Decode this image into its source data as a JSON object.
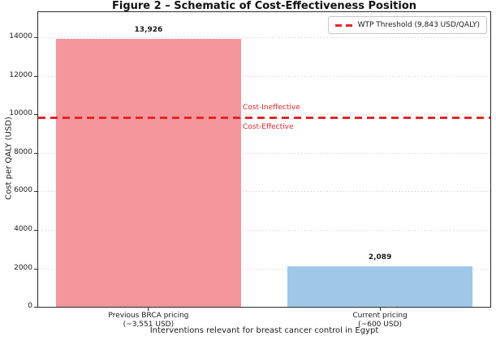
{
  "chart_data": {
    "type": "bar",
    "title": "Figure 2 – Schematic of Cost-Effectiveness Position",
    "xlabel": "Interventions relevant for breast cancer control in Egypt",
    "ylabel": "Cost per QALY (USD)",
    "categories": [
      {
        "line1": "Previous BRCA pricing",
        "line2": "(~3,551 USD)"
      },
      {
        "line1": "Current pricing",
        "line2": "(~600 USD)"
      }
    ],
    "values": [
      13926,
      2089
    ],
    "value_labels": [
      "13,926",
      "2,089"
    ],
    "bar_colors": [
      "#f4969b",
      "#9fc8e8"
    ],
    "ylim": [
      0,
      15320
    ],
    "yticks": [
      0,
      2000,
      4000,
      6000,
      8000,
      10000,
      12000,
      14000
    ],
    "ytick_labels": [
      "0",
      "2000",
      "4000",
      "6000",
      "8000",
      "10000",
      "12000",
      "14000"
    ],
    "grid": {
      "axis": "y",
      "style": "dotted",
      "color": "#c9c9c9"
    },
    "threshold_line": {
      "value": 9843,
      "style": "dashed",
      "color": "#e42528",
      "legend_label": "WTP Threshold (9,843 USD/QALY)"
    },
    "region_labels": {
      "above_line": "Cost-Ineffective",
      "below_line": "Cost-Effective",
      "color": "#e42528"
    },
    "legend_position": "upper right"
  },
  "colors": {
    "spine": "#2b2b2b",
    "background": "#ffffff",
    "legend_border": "#c8c8c8"
  }
}
